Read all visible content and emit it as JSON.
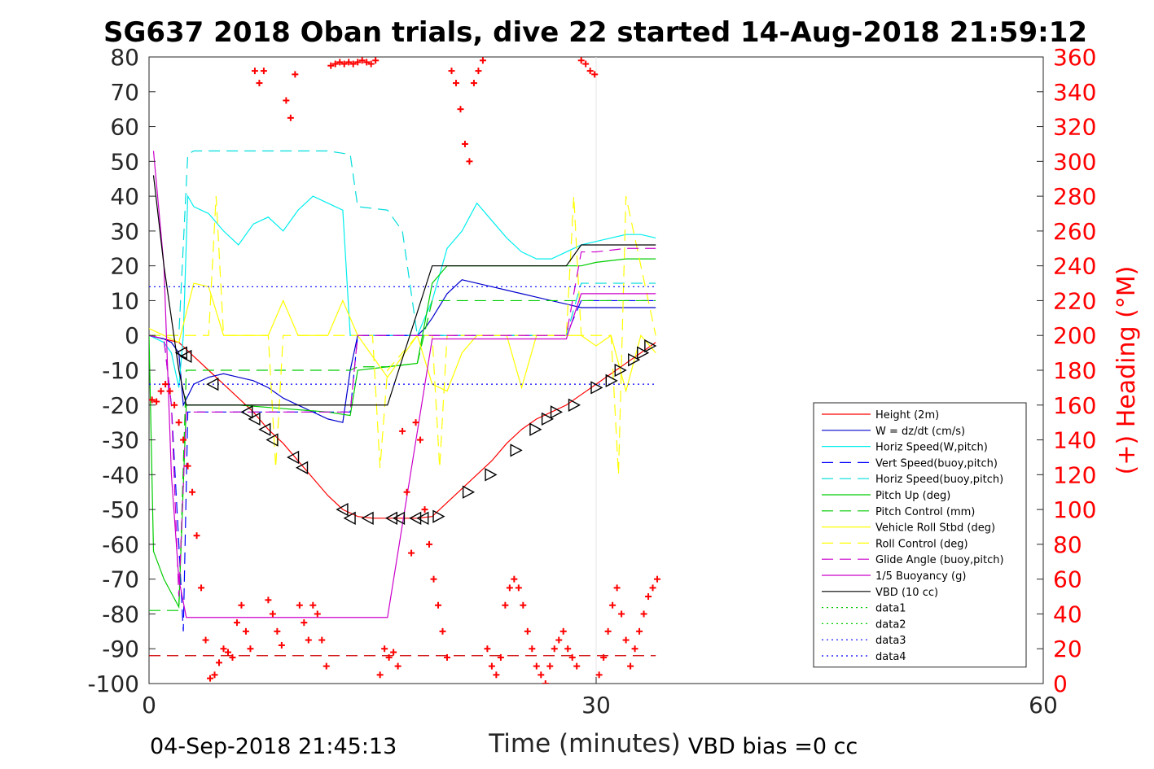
{
  "chart_data": {
    "type": "line",
    "title": "SG637 2018 Oban trials, dive 22 started 14-Aug-2018 21:59:12",
    "xlabel": "Time (minutes)",
    "ylabel_right": "(+) Heading (°M)",
    "xlim": [
      0,
      60
    ],
    "ylim": [
      -100,
      80
    ],
    "ylim_right": [
      0,
      360
    ],
    "x_ticks": [
      0,
      30,
      60
    ],
    "y_ticks": [
      -100,
      -90,
      -80,
      -70,
      -60,
      -50,
      -40,
      -30,
      -20,
      -10,
      0,
      10,
      20,
      30,
      40,
      50,
      60,
      70,
      80
    ],
    "y_right_ticks": [
      0,
      20,
      40,
      60,
      80,
      100,
      120,
      140,
      160,
      180,
      200,
      220,
      240,
      260,
      280,
      300,
      320,
      340,
      360
    ],
    "grid": "x-major",
    "legend_position": "bottom-right",
    "footer_left": "04-Sep-2018 21:45:13",
    "footer_right": "VBD bias =0 cc",
    "series": [
      {
        "name": "Height (2m)",
        "color": "#ff0000",
        "style": "solid",
        "x": [
          0,
          1,
          2,
          2.5,
          3,
          4,
          5,
          6,
          7,
          8,
          9,
          10,
          11,
          12,
          13,
          14,
          15,
          16,
          17,
          18,
          19,
          20,
          21,
          22,
          23,
          24,
          25,
          26,
          27,
          28,
          29,
          30,
          31,
          32,
          33,
          34
        ],
        "y": [
          0,
          -1,
          -2,
          -4,
          -6,
          -10,
          -14,
          -18,
          -22,
          -27,
          -31,
          -36,
          -41,
          -46,
          -50,
          -52,
          -52.5,
          -52.5,
          -52.5,
          -52.5,
          -52,
          -48,
          -44,
          -40,
          -36,
          -31,
          -27,
          -24,
          -22,
          -20,
          -17,
          -14,
          -11,
          -8,
          -5,
          -2
        ]
      },
      {
        "name": "W = dz/dt (cm/s)",
        "color": "#0000cc",
        "style": "solid",
        "x": [
          0,
          1,
          1.5,
          2,
          2.3,
          3,
          4,
          5,
          6,
          7,
          8,
          9,
          10,
          11,
          12,
          13,
          13.5,
          14,
          16,
          18,
          18.5,
          19,
          20,
          21,
          22,
          23,
          24,
          25,
          26,
          27,
          28,
          29,
          30,
          31,
          32,
          33,
          34
        ],
        "y": [
          0,
          -1,
          -2,
          -5,
          -20,
          -14,
          -12,
          -11,
          -12,
          -13,
          -15,
          -18,
          -20,
          -22,
          -24,
          -25,
          -10,
          0,
          0,
          0,
          2,
          5,
          12,
          16,
          15,
          14,
          13,
          12,
          11,
          10,
          9,
          8,
          8,
          8,
          8,
          8,
          8
        ]
      },
      {
        "name": "Horiz Speed(W,pitch)",
        "color": "#00eeee",
        "style": "solid",
        "x": [
          0,
          1,
          1.5,
          2,
          2.3,
          2.6,
          3,
          4,
          5,
          6,
          7,
          8,
          9,
          10,
          11,
          12,
          13,
          13.5,
          14,
          16,
          18,
          19,
          20,
          21,
          22,
          23,
          24,
          25,
          26,
          27,
          28,
          29,
          30,
          31,
          32,
          33,
          34
        ],
        "y": [
          0,
          -2,
          -5,
          -15,
          0,
          40,
          37,
          35,
          30,
          26,
          32,
          34,
          30,
          36,
          40,
          38,
          36,
          0,
          0,
          0,
          0,
          10,
          25,
          30,
          38,
          33,
          28,
          24,
          22,
          22,
          24,
          26,
          27,
          28,
          29,
          29,
          28
        ]
      },
      {
        "name": "Vert Speed(buoy,pitch)",
        "color": "#0000ff",
        "style": "dashed",
        "x": [
          0,
          1,
          1.5,
          2,
          2.3,
          2.6,
          3,
          6,
          9,
          12,
          13.5,
          14,
          16,
          18,
          19,
          22,
          25,
          28,
          29,
          34
        ],
        "y": [
          0,
          -1,
          -20,
          -60,
          -85,
          -22,
          -22,
          -22,
          -22,
          -22,
          -22,
          0,
          0,
          0,
          0,
          0,
          0,
          0,
          10,
          10
        ]
      },
      {
        "name": "Horiz Speed(buoy,pitch)",
        "color": "#00dddd",
        "style": "dashed",
        "x": [
          0,
          1,
          2,
          2.6,
          3,
          6,
          9,
          12,
          13.5,
          14,
          16,
          17,
          18,
          22,
          25,
          28,
          29,
          34
        ],
        "y": [
          0,
          0,
          0,
          52,
          53,
          53,
          53,
          53,
          52,
          37,
          36,
          30,
          0,
          0,
          0,
          0,
          15,
          15
        ]
      },
      {
        "name": "Pitch Up (deg)",
        "color": "#00cc00",
        "style": "solid",
        "x": [
          0,
          0.3,
          1,
          1.5,
          2,
          2.5,
          3,
          6,
          9,
          12,
          13.5,
          14,
          16,
          18,
          19,
          20,
          22,
          25,
          28,
          29,
          30,
          32,
          34
        ],
        "y": [
          0,
          -62,
          -70,
          -74,
          -78,
          -20,
          -20,
          -20,
          -21,
          -22,
          -23,
          -10,
          -9,
          -8,
          15,
          20,
          20,
          20,
          20,
          20,
          21,
          22,
          22
        ]
      },
      {
        "name": "Pitch Control (mm)",
        "color": "#00cc00",
        "style": "dashed",
        "x": [
          0,
          1,
          2,
          2.5,
          3,
          6,
          9,
          12,
          13.5,
          14,
          16,
          18,
          19,
          22,
          25,
          28,
          29,
          34
        ],
        "y": [
          -79,
          -79,
          -79,
          -10,
          -10,
          -10,
          -10,
          -10,
          -10,
          -9,
          -9,
          -8,
          10,
          10,
          10,
          10,
          10,
          10
        ]
      },
      {
        "name": "Vehicle Roll Stbd (deg)",
        "color": "#ffff00",
        "style": "solid",
        "x": [
          0,
          1,
          2,
          3,
          4,
          5,
          6,
          7,
          8,
          9,
          10,
          11,
          12,
          13,
          14,
          16,
          18,
          19,
          20,
          21,
          22,
          23,
          24,
          25,
          26,
          27,
          28,
          29,
          30,
          31,
          32,
          33,
          34
        ],
        "y": [
          2,
          0,
          -2,
          15,
          14,
          0,
          0,
          0,
          0,
          10,
          0,
          0,
          0,
          10,
          0,
          -12,
          0,
          -14,
          -16,
          -5,
          0,
          0,
          0,
          -15,
          0,
          0,
          0,
          0,
          -3,
          0,
          -16,
          0,
          -5
        ]
      },
      {
        "name": "Roll Control (deg)",
        "color": "#ffff00",
        "style": "dashed",
        "x": [
          0,
          2,
          3,
          4,
          4.5,
          5,
          8,
          8.5,
          9,
          14,
          15,
          15.5,
          16,
          18,
          19,
          19.5,
          20,
          28,
          28.5,
          29,
          31,
          31.5,
          32,
          34
        ],
        "y": [
          0,
          0,
          0,
          0,
          40,
          0,
          0,
          -38,
          0,
          0,
          0,
          -38,
          -10,
          0,
          0,
          -38,
          0,
          0,
          40,
          0,
          0,
          -40,
          40,
          0
        ]
      },
      {
        "name": "Glide Angle (buoy,pitch)",
        "color": "#cc00cc",
        "style": "dashed",
        "x": [
          0,
          1,
          1.5,
          2,
          2.5,
          3,
          6,
          9,
          12,
          13.5,
          14,
          16,
          18,
          22,
          25,
          28,
          29,
          30,
          32,
          34
        ],
        "y": [
          0,
          -1,
          -20,
          -75,
          -22,
          -22,
          -22,
          -22,
          -22,
          -22,
          0,
          0,
          0,
          0,
          0,
          0,
          24,
          24,
          25,
          25
        ]
      },
      {
        "name": "1/5 Buoyancy (g)",
        "color": "#cc00cc",
        "style": "solid",
        "x": [
          0.3,
          1,
          1.5,
          2,
          2.5,
          2.6,
          6,
          9,
          12,
          14,
          15,
          16,
          19,
          20,
          24,
          28,
          29,
          30,
          34
        ],
        "y": [
          53,
          20,
          -40,
          -70,
          -81,
          -81,
          -81,
          -81,
          -81,
          -81,
          -81,
          -81,
          -1,
          -1,
          -1,
          -1,
          12,
          12,
          12
        ]
      },
      {
        "name": "VBD (10 cc)",
        "color": "#000000",
        "style": "solid",
        "x": [
          0.3,
          1,
          2,
          2.5,
          3,
          6,
          9,
          12,
          14,
          15,
          16,
          19,
          20,
          24,
          28,
          29,
          30,
          34
        ],
        "y": [
          46,
          20,
          -10,
          -20,
          -20,
          -20,
          -20,
          -20,
          -20,
          -20,
          -20,
          20,
          20,
          20,
          20,
          26,
          26,
          26
        ]
      },
      {
        "name": "data1",
        "color": "#00cc00",
        "style": "dotted",
        "x": [],
        "y": []
      },
      {
        "name": "data2",
        "color": "#00cc00",
        "style": "dotted",
        "x": [],
        "y": []
      },
      {
        "name": "data3",
        "color": "#0000ff",
        "style": "dotted",
        "x": [
          0,
          34
        ],
        "y": [
          14,
          14
        ]
      },
      {
        "name": "data4",
        "color": "#0000ff",
        "style": "dotted",
        "x": [
          0,
          34
        ],
        "y": [
          -14,
          -14
        ]
      }
    ],
    "extra_lines": [
      {
        "color": "#cc0000",
        "style": "dashed",
        "x": [
          0,
          34
        ],
        "y": [
          -92,
          -92
        ]
      }
    ],
    "triangle_markers": {
      "color": "#000000",
      "x": [
        2.2,
        2.5,
        4.3,
        6.6,
        7.1,
        7.8,
        8.3,
        9.7,
        10.3,
        13.0,
        13.5,
        14.7,
        16.3,
        16.8,
        17.9,
        18.4,
        19.4,
        21.4,
        22.9,
        24.6,
        25.9,
        26.7,
        27.3,
        28.5,
        30.0,
        31.0,
        31.6,
        32.5,
        33.1,
        33.6
      ],
      "y": [
        -5,
        -6,
        -14,
        -22,
        -24,
        -27,
        -30,
        -35,
        -38,
        -50,
        -52.5,
        -52.5,
        -52.5,
        -52.5,
        -52.5,
        -52.5,
        -52,
        -45,
        -40,
        -33,
        -27,
        -24,
        -22,
        -20,
        -15,
        -13,
        -10,
        -7,
        -5,
        -3
      ]
    },
    "heading_points": {
      "axis": "right",
      "color": "#ff0000",
      "x": [
        0.2,
        0.5,
        0.8,
        1.1,
        1.4,
        1.7,
        2.0,
        2.3,
        2.6,
        2.9,
        3.2,
        3.5,
        3.8,
        4.1,
        4.4,
        4.7,
        5.0,
        5.3,
        5.6,
        5.9,
        6.2,
        6.5,
        6.8,
        7.1,
        7.4,
        7.7,
        8.0,
        8.3,
        8.6,
        8.9,
        9.2,
        9.5,
        9.8,
        10.1,
        10.4,
        10.7,
        11.0,
        11.3,
        11.6,
        11.9,
        12.2,
        12.5,
        12.8,
        13.1,
        13.4,
        13.7,
        14.0,
        14.3,
        14.6,
        14.9,
        15.2,
        15.5,
        15.8,
        16.1,
        16.4,
        16.7,
        17.0,
        17.3,
        17.6,
        17.9,
        18.2,
        18.5,
        18.8,
        19.1,
        19.4,
        19.7,
        20.0,
        20.3,
        20.6,
        20.9,
        21.2,
        21.5,
        21.8,
        22.1,
        22.4,
        22.7,
        23.0,
        23.3,
        23.6,
        23.9,
        24.2,
        24.5,
        24.8,
        25.1,
        25.4,
        25.7,
        26.0,
        26.3,
        26.6,
        26.9,
        27.2,
        27.5,
        27.8,
        28.1,
        28.4,
        28.7,
        29.0,
        29.3,
        29.6,
        29.9,
        30.2,
        30.5,
        30.8,
        31.1,
        31.4,
        31.7,
        32.0,
        32.3,
        32.6,
        32.9,
        33.2,
        33.5,
        33.8,
        34.1
      ],
      "y": [
        163,
        162,
        168,
        172,
        168,
        160,
        150,
        140,
        125,
        110,
        85,
        55,
        25,
        3,
        5,
        12,
        20,
        18,
        15,
        35,
        45,
        30,
        20,
        352,
        345,
        352,
        48,
        40,
        30,
        22,
        335,
        325,
        350,
        45,
        35,
        25,
        45,
        40,
        25,
        10,
        355,
        356,
        357,
        356,
        357,
        356,
        357,
        358,
        357,
        356,
        358,
        5,
        20,
        15,
        18,
        10,
        145,
        110,
        75,
        150,
        140,
        100,
        80,
        60,
        45,
        30,
        15,
        352,
        345,
        330,
        310,
        300,
        345,
        352,
        358,
        20,
        10,
        5,
        15,
        45,
        55,
        60,
        55,
        45,
        30,
        20,
        10,
        5,
        0,
        10,
        20,
        25,
        30,
        20,
        15,
        10,
        358,
        356,
        352,
        350,
        5,
        15,
        30,
        45,
        55,
        40,
        25,
        10,
        20,
        30,
        40,
        50,
        55,
        60
      ]
    }
  }
}
